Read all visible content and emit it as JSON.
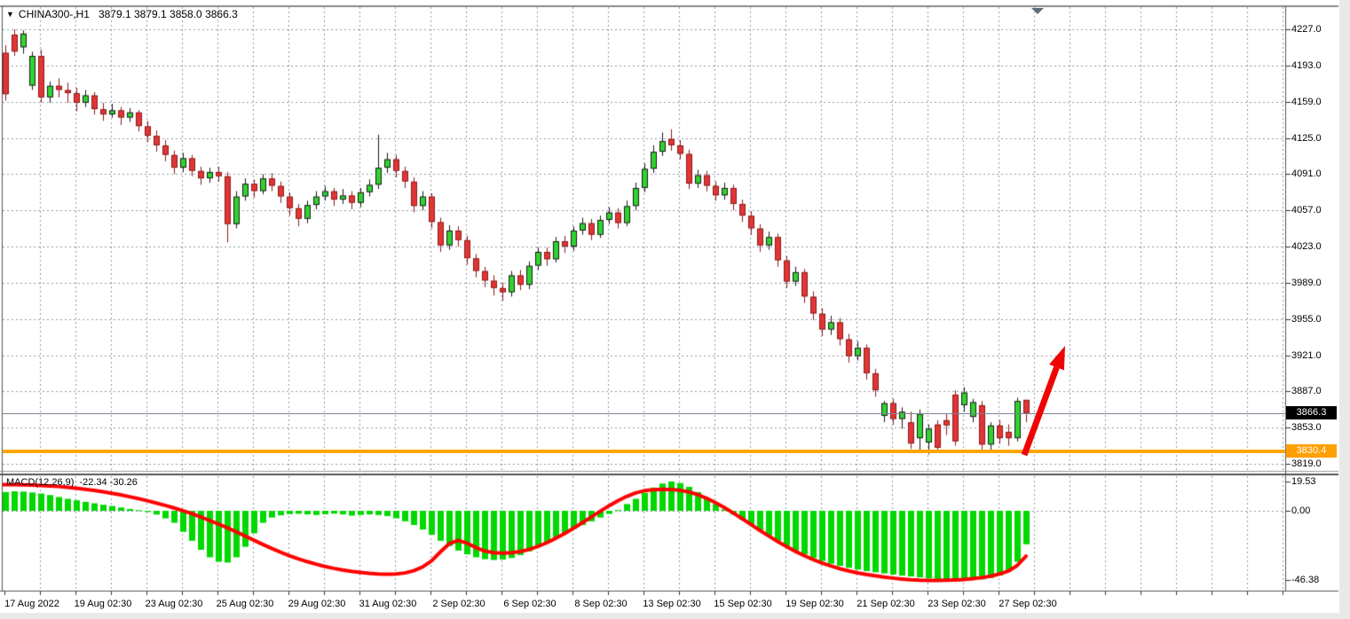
{
  "ui": {
    "quote": {
      "dropdown_icon": "▼",
      "symbol_period": "CHINA300-,H1",
      "ohlc_text": "3879.1 3879.1 3858.0 3866.3"
    },
    "macd_label": {
      "name": "MACD(12,26,9)",
      "values": "-22.34 -30.26"
    },
    "badges": {
      "current_price": "3866.3",
      "support_price": "3830.4"
    }
  },
  "colors": {
    "candle_up_fill": "#2fd32f",
    "candle_up_border": "#1a1a1a",
    "candle_down_fill": "#e23535",
    "candle_down_border": "#8b1a1a",
    "grid": "#8e99a8",
    "histogram": "#00d800",
    "signal_line": "#ff0000",
    "support_line": "#ffa500",
    "current_price_line": "#7b8694",
    "badge_current_bg": "#000000",
    "badge_support_bg": "#ff9f00",
    "arrow": "#ee0404",
    "border": "#555555",
    "axis_text": "#000000"
  },
  "chart_data": [
    {
      "type": "candlestick",
      "title": "CHINA300-,H1",
      "symbol": "CHINA300-",
      "timeframe": "H1",
      "quote_ohlc": {
        "open": 3879.1,
        "high": 3879.1,
        "low": 3858.0,
        "close": 3866.3
      },
      "grid": true,
      "y_axis": {
        "range": [
          3819.0,
          4227.0
        ],
        "ticks": [
          "4227.0",
          "4193.0",
          "4159.0",
          "4125.0",
          "4091.0",
          "4057.0",
          "4023.0",
          "3989.0",
          "3955.0",
          "3921.0",
          "3887.0",
          "3853.0",
          "3819.0"
        ]
      },
      "x_axis": {
        "labels": [
          "17 Aug 2022",
          "19 Aug 02:30",
          "23 Aug 02:30",
          "25 Aug 02:30",
          "29 Aug 02:30",
          "31 Aug 02:30",
          "2 Sep 02:30",
          "6 Sep 02:30",
          "8 Sep 02:30",
          "13 Sep 02:30",
          "15 Sep 02:30",
          "19 Sep 02:30",
          "21 Sep 02:30",
          "23 Sep 02:30",
          "27 Sep 02:30"
        ]
      },
      "annotations": {
        "support_line": {
          "price": 3830.4,
          "color": "#ffa500"
        },
        "current_price_line": {
          "price": 3866.3
        },
        "trend_arrow": {
          "direction": "up",
          "color": "#ee0404"
        }
      },
      "candles": [
        [
          4205,
          4212,
          4160,
          4166
        ],
        [
          4222,
          4227,
          4202,
          4206
        ],
        [
          4210,
          4226,
          4204,
          4223
        ],
        [
          4174,
          4206,
          4170,
          4202
        ],
        [
          4202,
          4208,
          4158,
          4163
        ],
        [
          4163,
          4178,
          4158,
          4174
        ],
        [
          4174,
          4181,
          4163,
          4170
        ],
        [
          4170,
          4177,
          4158,
          4167
        ],
        [
          4167,
          4172,
          4150,
          4158
        ],
        [
          4158,
          4170,
          4154,
          4165
        ],
        [
          4165,
          4168,
          4147,
          4152
        ],
        [
          4152,
          4158,
          4141,
          4147
        ],
        [
          4147,
          4157,
          4144,
          4151
        ],
        [
          4151,
          4154,
          4137,
          4144
        ],
        [
          4144,
          4153,
          4140,
          4149
        ],
        [
          4149,
          4151,
          4131,
          4136
        ],
        [
          4136,
          4141,
          4121,
          4127
        ],
        [
          4127,
          4132,
          4112,
          4118
        ],
        [
          4118,
          4123,
          4103,
          4109
        ],
        [
          4109,
          4113,
          4091,
          4097
        ],
        [
          4097,
          4111,
          4093,
          4106
        ],
        [
          4106,
          4109,
          4089,
          4094
        ],
        [
          4094,
          4098,
          4081,
          4087
        ],
        [
          4087,
          4097,
          4083,
          4093
        ],
        [
          4093,
          4098,
          4084,
          4089
        ],
        [
          4089,
          4093,
          4027,
          4044
        ],
        [
          4044,
          4075,
          4040,
          4070
        ],
        [
          4070,
          4087,
          4066,
          4082
        ],
        [
          4082,
          4086,
          4069,
          4075
        ],
        [
          4075,
          4091,
          4072,
          4087
        ],
        [
          4087,
          4092,
          4075,
          4080
        ],
        [
          4080,
          4084,
          4064,
          4070
        ],
        [
          4070,
          4074,
          4052,
          4059
        ],
        [
          4059,
          4063,
          4042,
          4049
        ],
        [
          4049,
          4066,
          4045,
          4062
        ],
        [
          4062,
          4075,
          4058,
          4070
        ],
        [
          4070,
          4080,
          4066,
          4075
        ],
        [
          4075,
          4078,
          4061,
          4067
        ],
        [
          4067,
          4077,
          4063,
          4071
        ],
        [
          4071,
          4075,
          4058,
          4064
        ],
        [
          4064,
          4078,
          4060,
          4074
        ],
        [
          4074,
          4086,
          4070,
          4081
        ],
        [
          4081,
          4128,
          4077,
          4097
        ],
        [
          4097,
          4111,
          4092,
          4105
        ],
        [
          4105,
          4109,
          4088,
          4094
        ],
        [
          4094,
          4098,
          4078,
          4084
        ],
        [
          4084,
          4088,
          4055,
          4061
        ],
        [
          4061,
          4075,
          4057,
          4070
        ],
        [
          4070,
          4073,
          4040,
          4046
        ],
        [
          4046,
          4050,
          4018,
          4024
        ],
        [
          4024,
          4043,
          4020,
          4038
        ],
        [
          4038,
          4042,
          4023,
          4029
        ],
        [
          4029,
          4033,
          4006,
          4012
        ],
        [
          4012,
          4016,
          3994,
          4000
        ],
        [
          4000,
          4004,
          3985,
          3991
        ],
        [
          3991,
          3996,
          3977,
          3984
        ],
        [
          3984,
          3989,
          3972,
          3980
        ],
        [
          3980,
          4000,
          3976,
          3996
        ],
        [
          3996,
          4001,
          3982,
          3987
        ],
        [
          3987,
          4009,
          3983,
          4005
        ],
        [
          4005,
          4022,
          4001,
          4018
        ],
        [
          4018,
          4022,
          4005,
          4011
        ],
        [
          4011,
          4032,
          4008,
          4028
        ],
        [
          4028,
          4033,
          4017,
          4023
        ],
        [
          4023,
          4042,
          4019,
          4038
        ],
        [
          4038,
          4050,
          4034,
          4045
        ],
        [
          4045,
          4049,
          4029,
          4034
        ],
        [
          4034,
          4052,
          4031,
          4048
        ],
        [
          4048,
          4060,
          4044,
          4055
        ],
        [
          4055,
          4059,
          4040,
          4045
        ],
        [
          4045,
          4066,
          4042,
          4061
        ],
        [
          4061,
          4083,
          4057,
          4078
        ],
        [
          4078,
          4101,
          4074,
          4096
        ],
        [
          4096,
          4118,
          4092,
          4112
        ],
        [
          4112,
          4130,
          4108,
          4122
        ],
        [
          4124,
          4133,
          4113,
          4118
        ],
        [
          4118,
          4123,
          4105,
          4110
        ],
        [
          4110,
          4114,
          4077,
          4082
        ],
        [
          4082,
          4095,
          4078,
          4090
        ],
        [
          4090,
          4094,
          4075,
          4080
        ],
        [
          4080,
          4084,
          4066,
          4071
        ],
        [
          4071,
          4083,
          4067,
          4078
        ],
        [
          4078,
          4081,
          4057,
          4063
        ],
        [
          4063,
          4067,
          4046,
          4052
        ],
        [
          4052,
          4056,
          4034,
          4040
        ],
        [
          4040,
          4044,
          4018,
          4024
        ],
        [
          4024,
          4037,
          4020,
          4032
        ],
        [
          4032,
          4035,
          4004,
          4010
        ],
        [
          4010,
          4014,
          3984,
          3990
        ],
        [
          3990,
          4004,
          3986,
          3999
        ],
        [
          3999,
          4002,
          3970,
          3976
        ],
        [
          3976,
          3981,
          3954,
          3960
        ],
        [
          3960,
          3965,
          3939,
          3945
        ],
        [
          3945,
          3958,
          3940,
          3952
        ],
        [
          3952,
          3956,
          3930,
          3936
        ],
        [
          3936,
          3941,
          3914,
          3920
        ],
        [
          3920,
          3934,
          3916,
          3928
        ],
        [
          3928,
          3931,
          3898,
          3904
        ],
        [
          3904,
          3908,
          3882,
          3888
        ],
        [
          3864,
          3878,
          3858,
          3876
        ],
        [
          3876,
          3880,
          3856,
          3861
        ],
        [
          3861,
          3872,
          3852,
          3868
        ],
        [
          3858,
          3868,
          3833,
          3838
        ],
        [
          3843,
          3870,
          3831,
          3866
        ],
        [
          3839,
          3856,
          3828,
          3852
        ],
        [
          3856,
          3860,
          3830,
          3834
        ],
        [
          3860,
          3866,
          3846,
          3855
        ],
        [
          3884,
          3888,
          3836,
          3840
        ],
        [
          3874,
          3891,
          3868,
          3886
        ],
        [
          3863,
          3880,
          3858,
          3877
        ],
        [
          3874,
          3878,
          3832,
          3837
        ],
        [
          3837,
          3858,
          3830,
          3855
        ],
        [
          3855,
          3860,
          3838,
          3843
        ],
        [
          3849,
          3856,
          3836,
          3843
        ],
        [
          3843,
          3881,
          3840,
          3878
        ],
        [
          3879.1,
          3879.1,
          3858.0,
          3866.3
        ]
      ]
    },
    {
      "type": "bar",
      "name": "MACD(12,26,9)",
      "macd_value": -22.34,
      "signal_value": -30.26,
      "y_axis": {
        "range": [
          -46.38,
          19.53
        ],
        "ticks": [
          "19.53",
          "0.00",
          "-46.38"
        ]
      },
      "histogram": [
        12.5,
        13.0,
        12.8,
        12.2,
        11.5,
        10.5,
        9.2,
        8.0,
        7.0,
        6.0,
        5.0,
        4.0,
        3.2,
        2.2,
        1.2,
        0.4,
        -0.8,
        -2.5,
        -5.0,
        -8.0,
        -14.0,
        -20.0,
        -26.0,
        -31.0,
        -34.0,
        -34.5,
        -31.0,
        -24.0,
        -15.0,
        -8.0,
        -4.5,
        -3.0,
        -2.2,
        -2.0,
        -2.4,
        -2.8,
        -2.3,
        -1.9,
        -2.4,
        -3.2,
        -2.8,
        -2.4,
        -2.8,
        -3.5,
        -5.0,
        -7.0,
        -9.5,
        -12.5,
        -16.0,
        -20.0,
        -23.5,
        -26.5,
        -29.0,
        -31.0,
        -32.3,
        -32.8,
        -32.5,
        -31.5,
        -29.5,
        -27.0,
        -24.0,
        -21.0,
        -18.0,
        -15.0,
        -12.0,
        -9.5,
        -7.0,
        -4.5,
        -2.0,
        0.5,
        4.5,
        8.0,
        12.0,
        15.5,
        18.2,
        19.53,
        18.5,
        16.0,
        12.5,
        8.5,
        4.5,
        1.0,
        -2.5,
        -6.0,
        -9.5,
        -13.0,
        -16.5,
        -20.0,
        -23.5,
        -26.5,
        -29.0,
        -31.5,
        -33.5,
        -35.3,
        -36.8,
        -38.0,
        -39.2,
        -40.2,
        -41.0,
        -41.8,
        -42.5,
        -43.2,
        -43.8,
        -44.4,
        -45.0,
        -45.5,
        -46.0,
        -46.38,
        -46.0,
        -45.4,
        -45.8,
        -44.8,
        -43.2,
        -40.5,
        -34.0,
        -22.34
      ],
      "signal": [
        17.5,
        17.4,
        17.3,
        17.1,
        16.9,
        16.6,
        16.2,
        15.7,
        15.1,
        14.4,
        13.6,
        12.7,
        11.7,
        10.6,
        9.4,
        8.1,
        6.7,
        5.2,
        3.6,
        1.9,
        0.1,
        -1.9,
        -4.1,
        -6.4,
        -8.8,
        -11.3,
        -14.0,
        -16.8,
        -19.6,
        -22.4,
        -25.1,
        -27.6,
        -29.9,
        -32.0,
        -33.9,
        -35.6,
        -37.1,
        -38.4,
        -39.5,
        -40.4,
        -41.1,
        -41.7,
        -42.1,
        -42.3,
        -42.2,
        -41.5,
        -40.0,
        -37.5,
        -33.5,
        -27.5,
        -22.0,
        -19.7,
        -21.5,
        -24.5,
        -26.8,
        -28.0,
        -28.3,
        -28.0,
        -27.2,
        -25.8,
        -23.8,
        -21.3,
        -18.4,
        -15.2,
        -11.7,
        -8.0,
        -4.2,
        -0.4,
        3.3,
        6.7,
        9.6,
        11.9,
        13.4,
        14.1,
        14.3,
        14.2,
        13.7,
        12.6,
        10.8,
        8.4,
        5.5,
        2.2,
        -1.4,
        -5.2,
        -9.1,
        -13.0,
        -16.8,
        -20.4,
        -23.8,
        -27.0,
        -29.9,
        -32.5,
        -34.8,
        -36.8,
        -38.6,
        -40.1,
        -41.4,
        -42.5,
        -43.4,
        -44.2,
        -44.9,
        -45.5,
        -46.0,
        -46.3,
        -46.4,
        -46.4,
        -46.3,
        -46.1,
        -45.8,
        -45.3,
        -44.6,
        -43.6,
        -42.2,
        -40.2,
        -36.5,
        -30.26
      ]
    }
  ]
}
